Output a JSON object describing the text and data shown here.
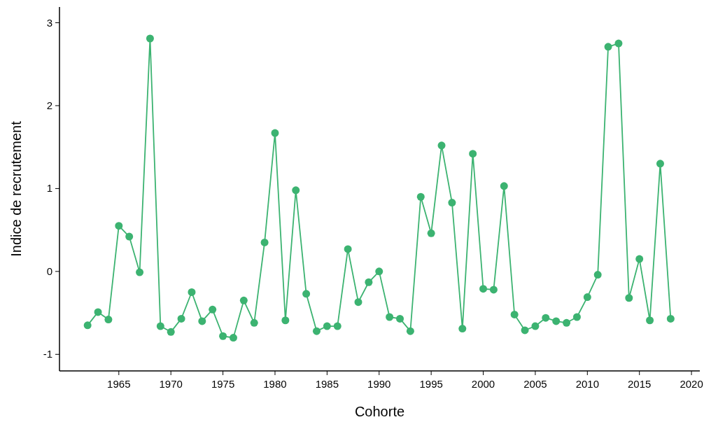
{
  "chart_data": {
    "type": "line",
    "xlabel": "Cohorte",
    "ylabel": "Indice de recrutement",
    "x": [
      1962,
      1963,
      1964,
      1965,
      1966,
      1967,
      1968,
      1969,
      1970,
      1971,
      1972,
      1973,
      1974,
      1975,
      1976,
      1977,
      1978,
      1979,
      1980,
      1981,
      1982,
      1983,
      1984,
      1985,
      1986,
      1987,
      1988,
      1989,
      1990,
      1991,
      1992,
      1993,
      1994,
      1995,
      1996,
      1997,
      1998,
      1999,
      2000,
      2001,
      2002,
      2003,
      2004,
      2005,
      2006,
      2007,
      2008,
      2009,
      2010,
      2011,
      2012,
      2013,
      2014,
      2015,
      2016,
      2017,
      2018
    ],
    "series": [
      {
        "color": "#3cb371",
        "values": [
          -0.65,
          -0.49,
          -0.58,
          0.55,
          0.42,
          -0.01,
          2.81,
          -0.66,
          -0.73,
          -0.57,
          -0.25,
          -0.6,
          -0.46,
          -0.78,
          -0.8,
          -0.35,
          -0.62,
          0.35,
          1.67,
          -0.59,
          0.98,
          -0.27,
          -0.72,
          -0.66,
          -0.66,
          0.27,
          -0.37,
          -0.13,
          0.0,
          -0.55,
          -0.57,
          -0.72,
          0.9,
          0.46,
          1.52,
          0.83,
          -0.69,
          1.42,
          -0.21,
          -0.22,
          1.03,
          -0.52,
          -0.71,
          -0.66,
          -0.56,
          -0.6,
          -0.62,
          -0.55,
          -0.31,
          -0.04,
          2.71,
          2.75,
          -0.32,
          0.15,
          -0.59,
          1.3,
          -0.57
        ]
      }
    ],
    "xlim": [
      1959.3,
      2020.8
    ],
    "xticks": [
      1965,
      1970,
      1975,
      1980,
      1985,
      1990,
      1995,
      2000,
      2005,
      2010,
      2015,
      2020
    ],
    "ylim": [
      -1.2,
      3.19
    ],
    "yticks": [
      -1,
      0,
      1,
      2,
      3
    ],
    "grid": false,
    "marker": "circle",
    "line_style": "solid"
  }
}
